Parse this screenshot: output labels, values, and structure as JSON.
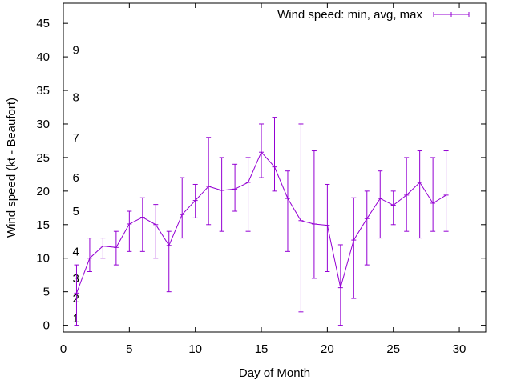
{
  "chart_data": {
    "type": "line",
    "xlabel": "Day of Month",
    "ylabel": "Wind speed (kt - Beaufort)",
    "xlim": [
      0,
      32
    ],
    "ylim": [
      -1,
      48
    ],
    "xticks": [
      0,
      5,
      10,
      15,
      20,
      25,
      30
    ],
    "yticks": [
      0,
      5,
      10,
      15,
      20,
      25,
      30,
      35,
      40,
      45
    ],
    "grid": false,
    "legend_position": "top-right",
    "series": [
      {
        "name": "Wind speed: min, avg, max",
        "color": "#9400d3",
        "style": "line with error bars",
        "x": [
          1,
          2,
          3,
          4,
          5,
          6,
          7,
          8,
          9,
          10,
          11,
          12,
          13,
          14,
          15,
          16,
          17,
          18,
          19,
          20,
          21,
          22,
          23,
          24,
          25,
          26,
          27,
          28,
          29
        ],
        "avg": [
          4.8,
          10.0,
          11.8,
          11.6,
          15.1,
          16.1,
          15.0,
          11.9,
          16.5,
          18.6,
          20.7,
          20.1,
          20.3,
          21.3,
          25.8,
          23.6,
          18.9,
          15.6,
          15.1,
          14.9,
          5.6,
          12.7,
          15.9,
          18.9,
          17.9,
          19.4,
          21.3,
          18.2,
          19.4
        ],
        "min": [
          0,
          8,
          10,
          9,
          11,
          11,
          10,
          5,
          13,
          16,
          15,
          14,
          17,
          14,
          22,
          20,
          11,
          2,
          7,
          8,
          0,
          4,
          9,
          13,
          15,
          14,
          13,
          14,
          14
        ],
        "max": [
          9,
          13,
          13,
          14,
          17,
          19,
          18,
          14,
          22,
          21,
          28,
          25,
          24,
          25,
          30,
          31,
          23,
          30,
          26,
          21,
          12,
          19,
          20,
          23,
          20,
          25,
          26,
          25,
          26
        ]
      }
    ],
    "annotations": [
      {
        "text": "1",
        "y": 1
      },
      {
        "text": "2",
        "y": 4
      },
      {
        "text": "3",
        "y": 7
      },
      {
        "text": "4",
        "y": 11
      },
      {
        "text": "5",
        "y": 17
      },
      {
        "text": "6",
        "y": 22
      },
      {
        "text": "7",
        "y": 28
      },
      {
        "text": "8",
        "y": 34
      },
      {
        "text": "9",
        "y": 41
      }
    ]
  }
}
